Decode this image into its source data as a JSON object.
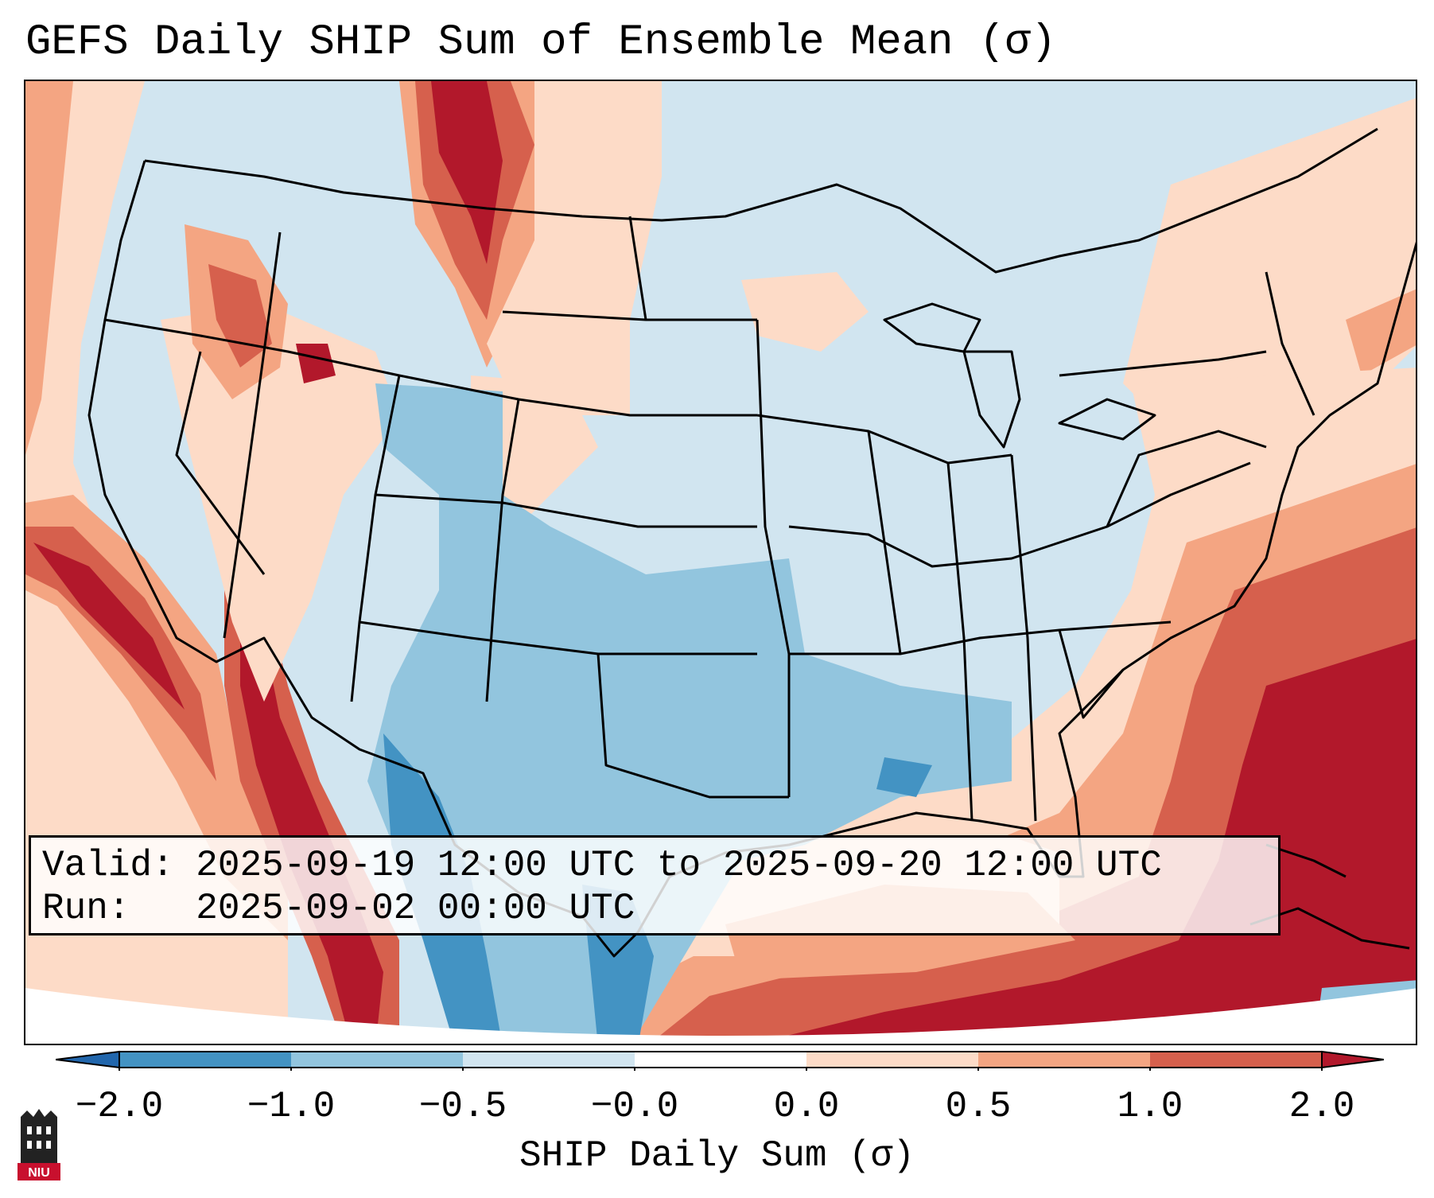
{
  "title": "GEFS Daily SHIP Sum of Ensemble Mean (σ)",
  "info": {
    "valid": "Valid: 2025-09-19 12:00 UTC to 2025-09-20 12:00 UTC",
    "run": "Run:   2025-09-02 00:00 UTC"
  },
  "colorbar": {
    "label": "SHIP Daily Sum (σ)",
    "ticks": [
      "−2.0",
      "−1.0",
      "−0.5",
      "−0.0",
      "0.0",
      "0.5",
      "1.0",
      "2.0"
    ],
    "colors": [
      "#4393c3",
      "#92c5de",
      "#d1e5f0",
      "#ffffff",
      "#fddbc7",
      "#f4a582",
      "#d6604d",
      "#b2182b"
    ],
    "extend_low_color": "#2166ac",
    "extend_high_color": "#b2182b"
  },
  "logo": {
    "text": "NIU",
    "color": "#c8102e"
  }
}
